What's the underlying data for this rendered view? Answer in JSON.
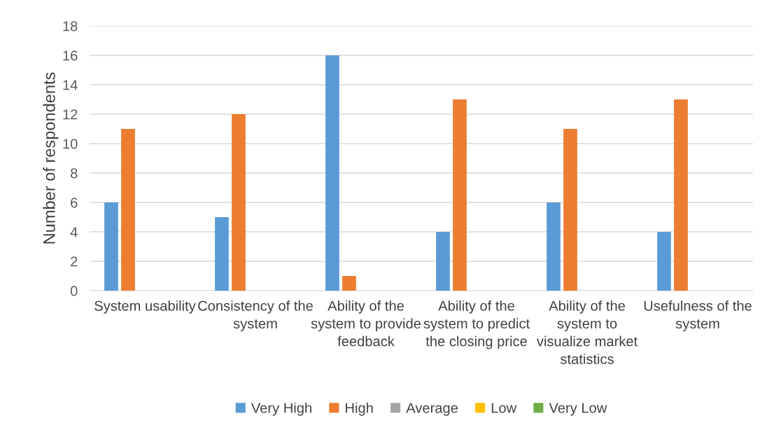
{
  "chart_data": {
    "type": "bar",
    "ylabel": "Number of respondents",
    "categories": [
      "System usability",
      "Consistency of the system",
      "Ability of the system to provide feedback",
      "Ability of the system to predict the closing price",
      "Ability of the system to visualize market statistics",
      "Usefulness of the system"
    ],
    "series": [
      {
        "name": "Very High",
        "color": "#5b9bd5",
        "values": [
          6,
          5,
          16,
          4,
          6,
          4
        ]
      },
      {
        "name": "High",
        "color": "#ed7d31",
        "values": [
          11,
          12,
          1,
          13,
          11,
          13
        ]
      },
      {
        "name": "Average",
        "color": "#a5a5a5",
        "values": [
          0,
          0,
          0,
          0,
          0,
          0
        ]
      },
      {
        "name": "Low",
        "color": "#ffc000",
        "values": [
          0,
          0,
          0,
          0,
          0,
          0
        ]
      },
      {
        "name": "Very Low",
        "color": "#70ad47",
        "values": [
          0,
          0,
          0,
          0,
          0,
          0
        ]
      }
    ],
    "ylim": [
      0,
      18
    ],
    "yticks": [
      0,
      2,
      4,
      6,
      8,
      10,
      12,
      14,
      16,
      18
    ],
    "grid": "y",
    "legend": "bottom"
  }
}
